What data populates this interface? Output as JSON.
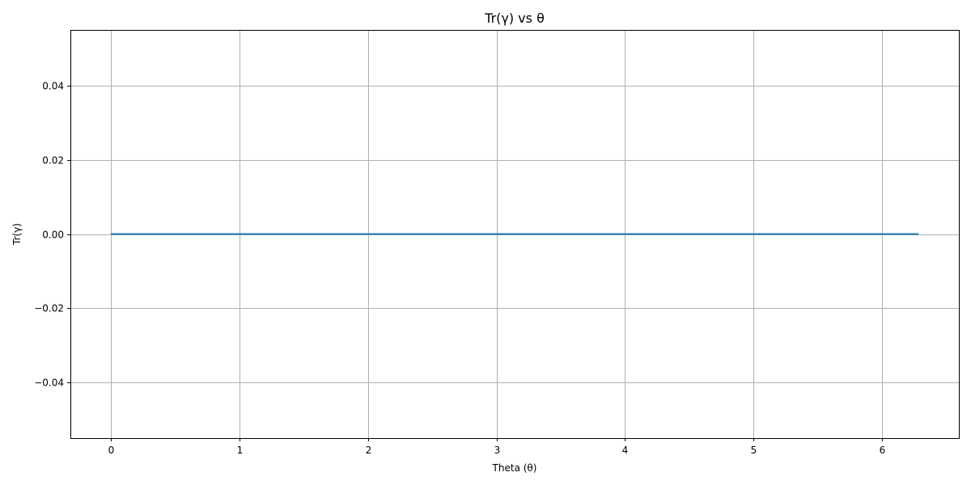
{
  "chart_data": {
    "type": "line",
    "title": "Tr(γ) vs θ",
    "xlabel": "Theta (θ)",
    "ylabel": "Tr(γ)",
    "xlim": [
      -0.314,
      6.597
    ],
    "ylim": [
      -0.055,
      0.055
    ],
    "xticks": [
      0,
      1,
      2,
      3,
      4,
      5,
      6
    ],
    "xtick_labels": [
      "0",
      "1",
      "2",
      "3",
      "4",
      "5",
      "6"
    ],
    "yticks": [
      -0.04,
      -0.02,
      0.0,
      0.02,
      0.04
    ],
    "ytick_labels": [
      "−0.04",
      "−0.02",
      "0.00",
      "0.02",
      "0.04"
    ],
    "grid": true,
    "series": [
      {
        "color": "#1f77b4",
        "x": [
          0,
          0.785,
          1.571,
          2.356,
          3.142,
          3.927,
          4.712,
          5.498,
          6.283
        ],
        "y": [
          0,
          0,
          0,
          0,
          0,
          0,
          0,
          0,
          0
        ]
      }
    ],
    "colors": {
      "grid": "#b0b0b0",
      "axes": "#000000",
      "background": "#ffffff"
    }
  }
}
